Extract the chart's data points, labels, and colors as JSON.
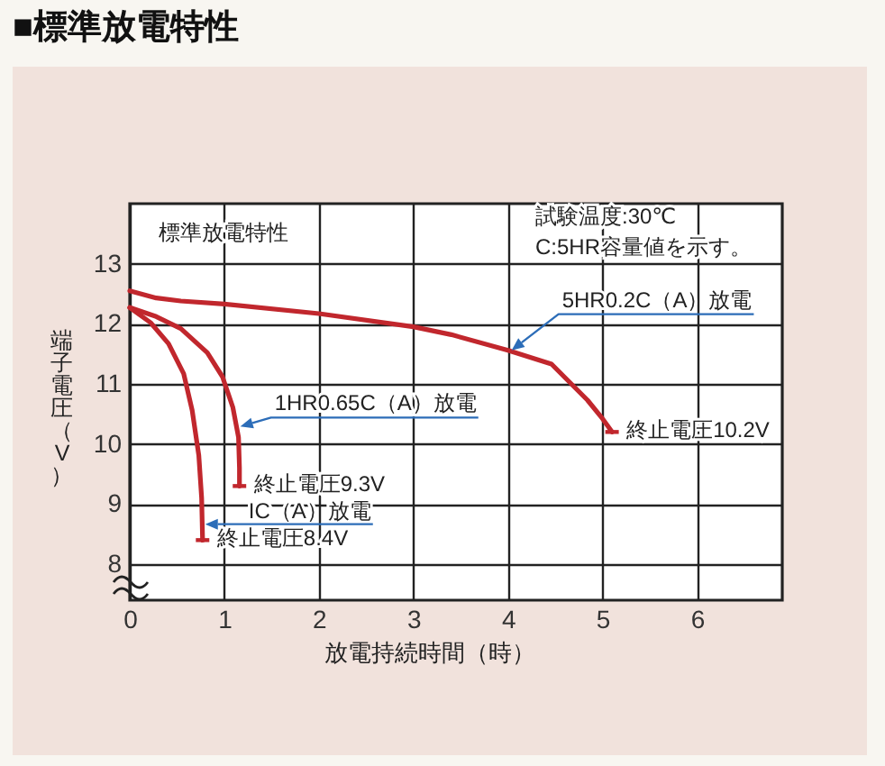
{
  "chart_data": {
    "type": "line",
    "title": "■標準放電特性",
    "xlabel": "放電持続時間（時）",
    "ylabel": "端子電圧（V）",
    "annotations": [
      "標準放電特性",
      "試験温度:30℃",
      "C:5HR容量値を示す。",
      {
        "text": "終止電圧10.2V",
        "x": 5.1,
        "y": 10.2
      },
      {
        "text": "終止電圧9.3V",
        "x": 1.16,
        "y": 9.3
      },
      {
        "text": "終止電圧8.4V",
        "x": 0.77,
        "y": 8.4
      }
    ],
    "series": [
      {
        "name": "5HR0.2C（A）放電",
        "color": "#c1272d",
        "x": [
          0,
          0.28,
          0.54,
          1,
          2,
          3,
          3.4,
          4,
          4.46,
          4.65,
          4.84,
          5,
          5.1
        ],
        "values": [
          12.55,
          12.43,
          12.38,
          12.33,
          12.17,
          11.95,
          11.82,
          11.56,
          11.33,
          11.03,
          10.73,
          10.42,
          10.2
        ]
      },
      {
        "name": "1HR0.65C（A）放電",
        "color": "#c1272d",
        "x": [
          0,
          0.28,
          0.54,
          0.82,
          0.98,
          1.09,
          1.15,
          1.16,
          1.16
        ],
        "values": [
          12.27,
          12.12,
          11.92,
          11.52,
          11.12,
          10.61,
          10.11,
          9.6,
          9.3
        ]
      },
      {
        "name": "IC（A）放電",
        "color": "#c1272d",
        "x": [
          0,
          0.22,
          0.41,
          0.57,
          0.66,
          0.73,
          0.76,
          0.77
        ],
        "values": [
          12.27,
          12.02,
          11.67,
          11.17,
          10.56,
          9.81,
          9.1,
          8.4
        ]
      }
    ],
    "xlim": [
      0,
      6.9
    ],
    "ylim": [
      7.4,
      14
    ],
    "xticks": [
      0,
      1,
      2,
      3,
      4,
      5,
      6
    ],
    "yticks": [
      8,
      9,
      10,
      11,
      12,
      13
    ],
    "grid": true
  }
}
